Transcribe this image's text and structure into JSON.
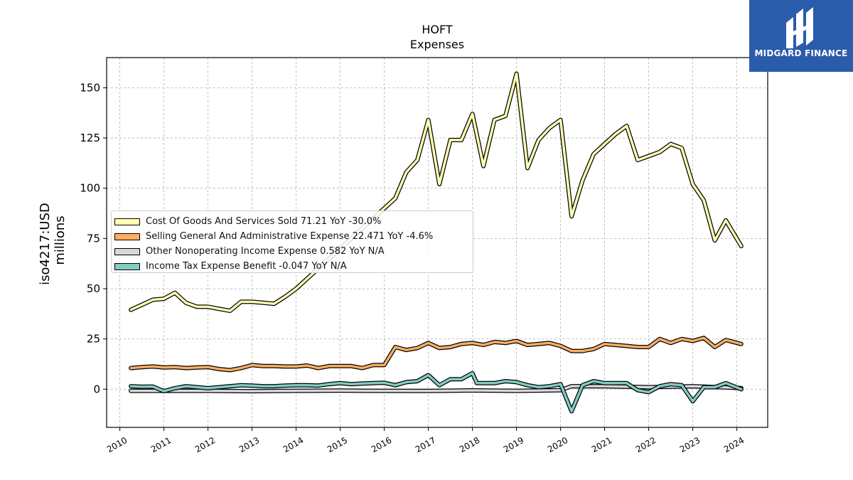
{
  "logo": {
    "text": "MIDGARD FINANCE",
    "color": "#2b5bab"
  },
  "chart_data": {
    "type": "line",
    "title": "HOFT",
    "subtitle": "Expenses",
    "ylabel": "iso4217:USD",
    "ylabel2": "millions",
    "xlabel": "",
    "xlim": [
      2009.7,
      2024.7
    ],
    "ylim": [
      -19,
      165
    ],
    "grid": true,
    "legend_position": "center-left",
    "x_ticks": [
      2010,
      2011,
      2012,
      2013,
      2014,
      2015,
      2016,
      2017,
      2018,
      2019,
      2020,
      2021,
      2022,
      2023,
      2024
    ],
    "x_tick_labels": [
      "2010",
      "2011",
      "2012",
      "2013",
      "2014",
      "2015",
      "2016",
      "2017",
      "2018",
      "2019",
      "2020",
      "2021",
      "2022",
      "2023",
      "2024"
    ],
    "y_ticks": [
      0,
      25,
      50,
      75,
      100,
      125,
      150
    ],
    "y_tick_labels": [
      "0",
      "25",
      "50",
      "75",
      "100",
      "125",
      "150"
    ],
    "series": [
      {
        "name": "Other Nonoperating Income Expense",
        "label": "Other Nonoperating Income Expense  0.582 YoY N/A",
        "color": "#d9d9d9",
        "fill": true,
        "x": [
          2010.25,
          2011.0,
          2012.0,
          2013.0,
          2014.0,
          2015.0,
          2016.0,
          2017.0,
          2018.0,
          2019.0,
          2020.0,
          2020.25,
          2021.0,
          2022.0,
          2023.0,
          2024.1
        ],
        "y": [
          -0.8,
          -0.8,
          -0.8,
          -1.0,
          -0.8,
          -0.7,
          -0.8,
          -0.9,
          -0.6,
          -0.8,
          -0.5,
          1.5,
          1.5,
          1.0,
          1.5,
          0.58
        ]
      },
      {
        "name": "Income Tax Expense Benefit",
        "label": "Income Tax Expense Benefit  -0.047 YoY N/A",
        "color": "#80cdc1",
        "fill": false,
        "x": [
          2010.25,
          2010.5,
          2010.75,
          2011.0,
          2011.25,
          2011.5,
          2011.75,
          2012.0,
          2012.25,
          2012.5,
          2012.75,
          2013.0,
          2013.25,
          2013.5,
          2013.75,
          2014.0,
          2014.25,
          2014.5,
          2014.75,
          2015.0,
          2015.25,
          2015.5,
          2015.75,
          2016.0,
          2016.25,
          2016.5,
          2016.75,
          2017.0,
          2017.25,
          2017.5,
          2017.75,
          2018.0,
          2018.1,
          2018.25,
          2018.5,
          2018.75,
          2019.0,
          2019.25,
          2019.5,
          2019.75,
          2020.0,
          2020.25,
          2020.5,
          2020.75,
          2021.0,
          2021.25,
          2021.5,
          2021.75,
          2022.0,
          2022.25,
          2022.5,
          2022.75,
          2023.0,
          2023.25,
          2023.5,
          2023.75,
          2024.1
        ],
        "y": [
          1.5,
          1.2,
          1.3,
          -1.0,
          0.5,
          1.5,
          1.0,
          0.5,
          1.0,
          1.5,
          2.0,
          1.8,
          1.5,
          1.5,
          1.8,
          2.0,
          2.0,
          1.8,
          2.5,
          3.0,
          2.5,
          2.8,
          3.0,
          3.2,
          2.0,
          3.5,
          4.0,
          7.0,
          2.0,
          5.0,
          5.0,
          8.0,
          3.0,
          3.0,
          3.0,
          4.0,
          3.5,
          2.0,
          1.0,
          1.5,
          2.5,
          -11.0,
          2.0,
          4.0,
          3.0,
          3.0,
          3.0,
          -0.5,
          -1.5,
          1.5,
          2.5,
          2.0,
          -6.0,
          1.0,
          1.0,
          3.0,
          -0.047
        ]
      },
      {
        "name": "Selling General And Administrative Expense",
        "label": "Selling General And Administrative Expense  22.471 YoY -4.6%",
        "color": "#fdae61",
        "fill": false,
        "x": [
          2010.25,
          2010.5,
          2010.75,
          2011.0,
          2011.25,
          2011.5,
          2011.75,
          2012.0,
          2012.25,
          2012.5,
          2012.75,
          2013.0,
          2013.25,
          2013.5,
          2013.75,
          2014.0,
          2014.25,
          2014.5,
          2014.75,
          2015.0,
          2015.25,
          2015.5,
          2015.75,
          2016.0,
          2016.25,
          2016.5,
          2016.75,
          2017.0,
          2017.25,
          2017.5,
          2017.75,
          2018.0,
          2018.25,
          2018.5,
          2018.75,
          2019.0,
          2019.25,
          2019.5,
          2019.75,
          2020.0,
          2020.25,
          2020.5,
          2020.75,
          2021.0,
          2021.25,
          2021.5,
          2021.75,
          2022.0,
          2022.25,
          2022.5,
          2022.75,
          2023.0,
          2023.25,
          2023.5,
          2023.75,
          2024.1
        ],
        "y": [
          10.5,
          11.0,
          11.3,
          10.8,
          11.0,
          10.5,
          10.8,
          11.0,
          10.0,
          9.5,
          10.5,
          12.0,
          11.5,
          11.5,
          11.3,
          11.3,
          11.8,
          10.5,
          11.5,
          11.5,
          11.5,
          10.5,
          12.0,
          12.0,
          21.0,
          19.5,
          20.5,
          23.0,
          20.5,
          21.0,
          22.5,
          23.0,
          22.0,
          23.5,
          23.0,
          24.0,
          22.0,
          22.5,
          23.0,
          21.5,
          19.0,
          19.0,
          20.0,
          22.5,
          22.0,
          21.5,
          21.0,
          21.0,
          25.0,
          23.0,
          25.0,
          24.0,
          25.5,
          21.0,
          24.5,
          22.471
        ]
      },
      {
        "name": "Cost Of Goods And Services Sold",
        "label": "Cost Of Goods And Services Sold  71.21 YoY -30.0%",
        "color": "#ffffb3",
        "fill": false,
        "x": [
          2010.25,
          2010.5,
          2010.75,
          2011.0,
          2011.25,
          2011.5,
          2011.75,
          2012.0,
          2012.25,
          2012.5,
          2012.75,
          2013.0,
          2013.25,
          2013.5,
          2013.75,
          2014.0,
          2014.25,
          2014.5,
          2014.75,
          2015.0,
          2015.25,
          2015.5,
          2015.75,
          2016.0,
          2016.25,
          2016.5,
          2016.75,
          2017.0,
          2017.25,
          2017.5,
          2017.75,
          2018.0,
          2018.25,
          2018.5,
          2018.75,
          2019.0,
          2019.25,
          2019.5,
          2019.75,
          2020.0,
          2020.25,
          2020.5,
          2020.75,
          2021.0,
          2021.25,
          2021.5,
          2021.75,
          2022.0,
          2022.25,
          2022.5,
          2022.75,
          2023.0,
          2023.25,
          2023.5,
          2023.75,
          2024.1
        ],
        "y": [
          39.5,
          42.0,
          44.5,
          45.0,
          48.0,
          43.0,
          41.0,
          41.0,
          40.0,
          39.0,
          43.5,
          43.5,
          43.0,
          42.5,
          46.0,
          50.0,
          55.0,
          60.0,
          65.0,
          70.0,
          75.0,
          80.0,
          85.0,
          90.0,
          95.0,
          108.0,
          114.0,
          134.0,
          102.0,
          124.0,
          124.0,
          137.0,
          111.0,
          134.0,
          136.0,
          157.0,
          110.0,
          124.0,
          130.0,
          134.0,
          86.0,
          104.0,
          117.0,
          122.0,
          127.0,
          131.0,
          114.0,
          116.0,
          118.0,
          122.0,
          120.0,
          102.0,
          94.0,
          74.0,
          84.0,
          71.21
        ]
      }
    ]
  },
  "legend": {
    "items": [
      {
        "label": "Cost Of Goods And Services Sold  71.21 YoY -30.0%",
        "color": "#ffffb3"
      },
      {
        "label": "Selling General And Administrative Expense  22.471 YoY -4.6%",
        "color": "#fdae61"
      },
      {
        "label": "Other Nonoperating Income Expense  0.582 YoY N/A",
        "color": "#d9d9d9"
      },
      {
        "label": "Income Tax Expense Benefit  -0.047 YoY N/A",
        "color": "#80cdc1"
      }
    ]
  }
}
